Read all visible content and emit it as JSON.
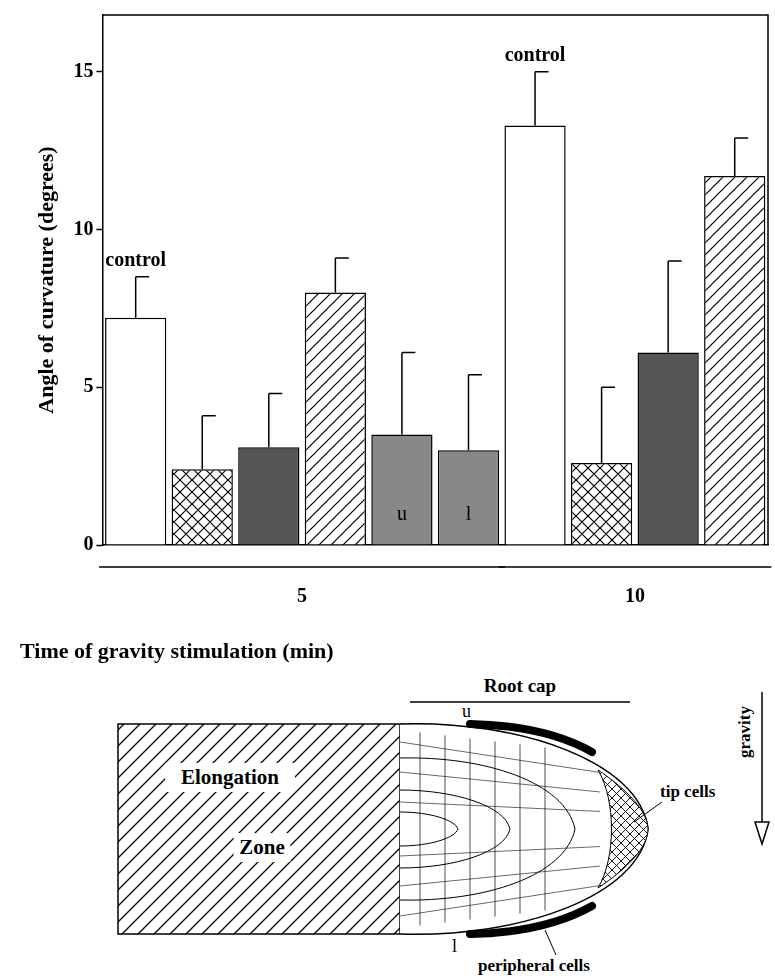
{
  "chart_data": {
    "type": "bar",
    "y_label": "Angle of curvature (degrees)",
    "x_label": "Time of gravity stimulation (min)",
    "categories": [
      null,
      null,
      null,
      null,
      null,
      null,
      null,
      null,
      null,
      null
    ],
    "values": [
      7.2,
      2.4,
      3.1,
      8.0,
      3.5,
      3.0,
      13.3,
      2.6,
      6.1,
      11.7
    ],
    "errors": [
      1.3,
      1.7,
      1.7,
      1.1,
      2.6,
      2.4,
      1.7,
      2.4,
      2.9,
      1.2
    ],
    "colors": [
      "#ffffff",
      "#ffffff",
      "#555555",
      "#ffffff",
      "#888888",
      "#888888",
      "#ffffff",
      "#ffffff",
      "#555555",
      "#ffffff"
    ],
    "groups": [
      {
        "label": "5",
        "from": 0,
        "to": 5
      },
      {
        "label": "10",
        "from": 6,
        "to": 9
      }
    ],
    "annotations": [
      {
        "index": 0,
        "text": "control",
        "position": "above"
      },
      {
        "index": 6,
        "text": "control",
        "position": "above"
      },
      {
        "index": 4,
        "text": "u",
        "position": "inside"
      },
      {
        "index": 5,
        "text": "l",
        "position": "inside"
      }
    ],
    "ylim": [
      0,
      16.8
    ],
    "yticks": [
      0,
      5,
      10,
      15
    ],
    "grid": false,
    "tick_labels": "y"
  },
  "diagram": {
    "root_cap": "Root cap",
    "elongation": "Elongation Zone",
    "upper": "u",
    "lower": "l",
    "tip": "tip cells",
    "peripheral": "peripheral cells",
    "gravity": "gravity"
  }
}
